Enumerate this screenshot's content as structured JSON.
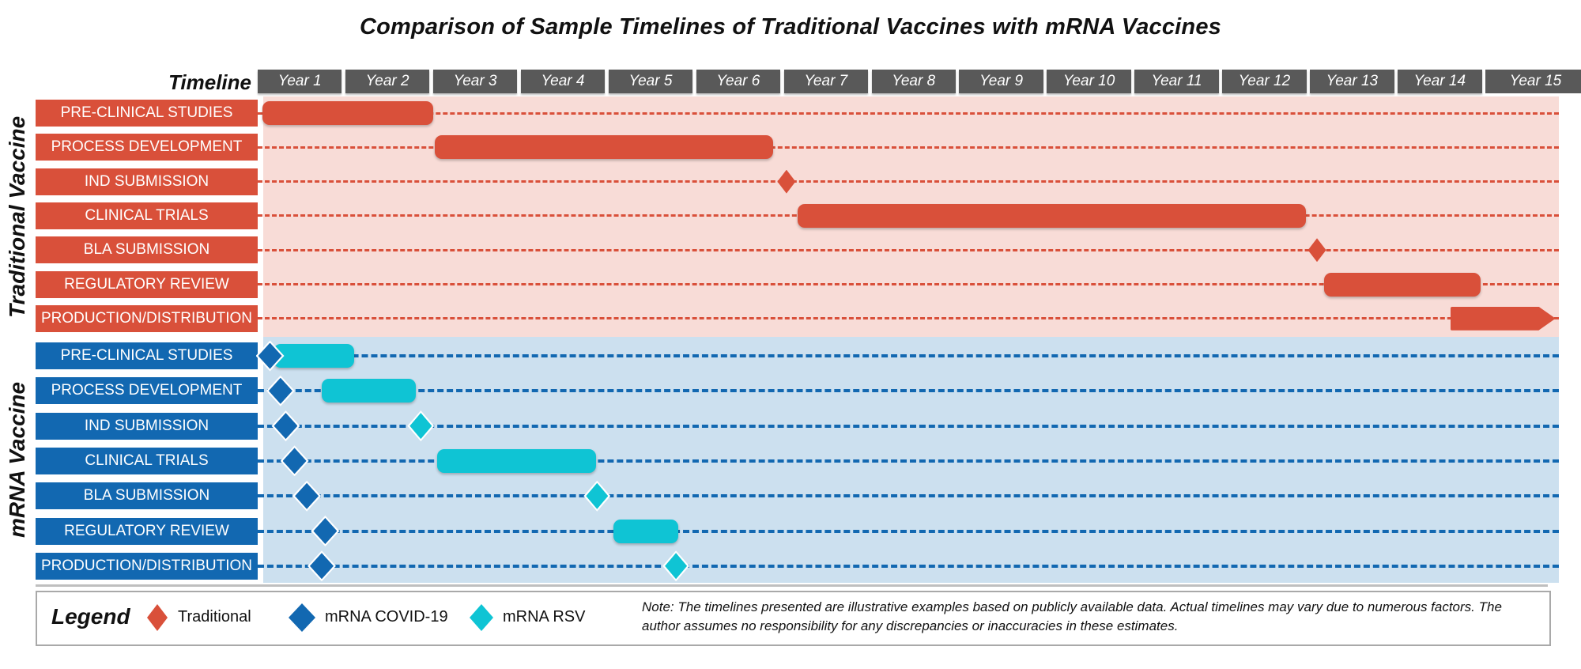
{
  "title": "Comparison of Sample Timelines of Traditional Vaccines with mRNA Vaccines",
  "timeline": {
    "label": "Timeline",
    "years": [
      "Year 1",
      "Year 2",
      "Year 3",
      "Year 4",
      "Year 5",
      "Year 6",
      "Year 7",
      "Year 8",
      "Year 9",
      "Year 10",
      "Year 11",
      "Year 12",
      "Year 13",
      "Year 14",
      "Year 15"
    ]
  },
  "colors": {
    "traditional": "#D9503A",
    "traditional_bg": "#F8DCD7",
    "covid": "#1268B1",
    "mrna_bg": "#CCE0EF",
    "rsv": "#0FC4D4",
    "year_box": "#595959",
    "border_gray": "#A9A9A9"
  },
  "chart_data": {
    "type": "gantt",
    "x_axis": {
      "unit": "year",
      "min": 1,
      "max": 16,
      "tick_labels": [
        "Year 1",
        "Year 2",
        "Year 3",
        "Year 4",
        "Year 5",
        "Year 6",
        "Year 7",
        "Year 8",
        "Year 9",
        "Year 10",
        "Year 11",
        "Year 12",
        "Year 13",
        "Year 14",
        "Year 15"
      ]
    },
    "sections": [
      {
        "name": "Traditional Vaccine",
        "series": "traditional",
        "rows": [
          {
            "label": "PRE-CLINICAL STUDIES",
            "items": [
              {
                "kind": "bar",
                "series": "traditional",
                "start_year": 1.05,
                "end_year": 3.0
              }
            ]
          },
          {
            "label": "PROCESS DEVELOPMENT",
            "items": [
              {
                "kind": "bar",
                "series": "traditional",
                "start_year": 3.02,
                "end_year": 6.88
              }
            ]
          },
          {
            "label": "IND SUBMISSION",
            "items": [
              {
                "kind": "milestone",
                "series": "traditional",
                "year": 7.03
              }
            ]
          },
          {
            "label": "CLINICAL TRIALS",
            "items": [
              {
                "kind": "bar",
                "series": "traditional",
                "start_year": 7.16,
                "end_year": 12.95
              }
            ]
          },
          {
            "label": "BLA SUBMISSION",
            "items": [
              {
                "kind": "milestone",
                "series": "traditional",
                "year": 13.08
              }
            ]
          },
          {
            "label": "REGULATORY REVIEW",
            "items": [
              {
                "kind": "bar",
                "series": "traditional",
                "start_year": 13.16,
                "end_year": 14.95
              }
            ]
          },
          {
            "label": "PRODUCTION/DISTRIBUTION",
            "items": [
              {
                "kind": "arrow_bar",
                "series": "traditional",
                "start_year": 14.6,
                "end_year": 15.8
              }
            ]
          }
        ]
      },
      {
        "name": "mRNA Vaccine",
        "series": "covid",
        "rows": [
          {
            "label": "PRE-CLINICAL STUDIES",
            "items": [
              {
                "kind": "bar",
                "series": "rsv",
                "start_year": 1.18,
                "end_year": 2.1
              },
              {
                "kind": "milestone",
                "series": "covid",
                "year": 1.14
              }
            ]
          },
          {
            "label": "PROCESS DEVELOPMENT",
            "items": [
              {
                "kind": "milestone",
                "series": "covid",
                "year": 1.26
              },
              {
                "kind": "bar",
                "series": "rsv",
                "start_year": 1.73,
                "end_year": 2.8
              }
            ]
          },
          {
            "label": "IND SUBMISSION",
            "items": [
              {
                "kind": "milestone",
                "series": "covid",
                "year": 1.32
              },
              {
                "kind": "milestone",
                "series": "rsv",
                "year": 2.86
              }
            ]
          },
          {
            "label": "CLINICAL TRIALS",
            "items": [
              {
                "kind": "milestone",
                "series": "covid",
                "year": 1.42
              },
              {
                "kind": "bar",
                "series": "rsv",
                "start_year": 3.05,
                "end_year": 4.86
              }
            ]
          },
          {
            "label": "BLA SUBMISSION",
            "items": [
              {
                "kind": "milestone",
                "series": "covid",
                "year": 1.56
              },
              {
                "kind": "milestone",
                "series": "rsv",
                "year": 4.87
              }
            ]
          },
          {
            "label": "REGULATORY REVIEW",
            "items": [
              {
                "kind": "milestone",
                "series": "covid",
                "year": 1.77
              },
              {
                "kind": "bar",
                "series": "rsv",
                "start_year": 5.06,
                "end_year": 5.8
              }
            ]
          },
          {
            "label": "PRODUCTION/DISTRIBUTION",
            "items": [
              {
                "kind": "milestone",
                "series": "covid",
                "year": 1.73
              },
              {
                "kind": "milestone",
                "series": "rsv",
                "year": 5.77
              }
            ]
          }
        ]
      }
    ]
  },
  "legend": {
    "label": "Legend",
    "items": [
      {
        "label": "Traditional",
        "series": "traditional"
      },
      {
        "label": "mRNA COVID-19",
        "series": "covid"
      },
      {
        "label": "mRNA RSV",
        "series": "rsv"
      }
    ]
  },
  "note": "Note: The timelines presented are illustrative examples based on publicly available data. Actual timelines may vary due to numerous factors. The author assumes no responsibility for any discrepancies or inaccuracies in these estimates."
}
